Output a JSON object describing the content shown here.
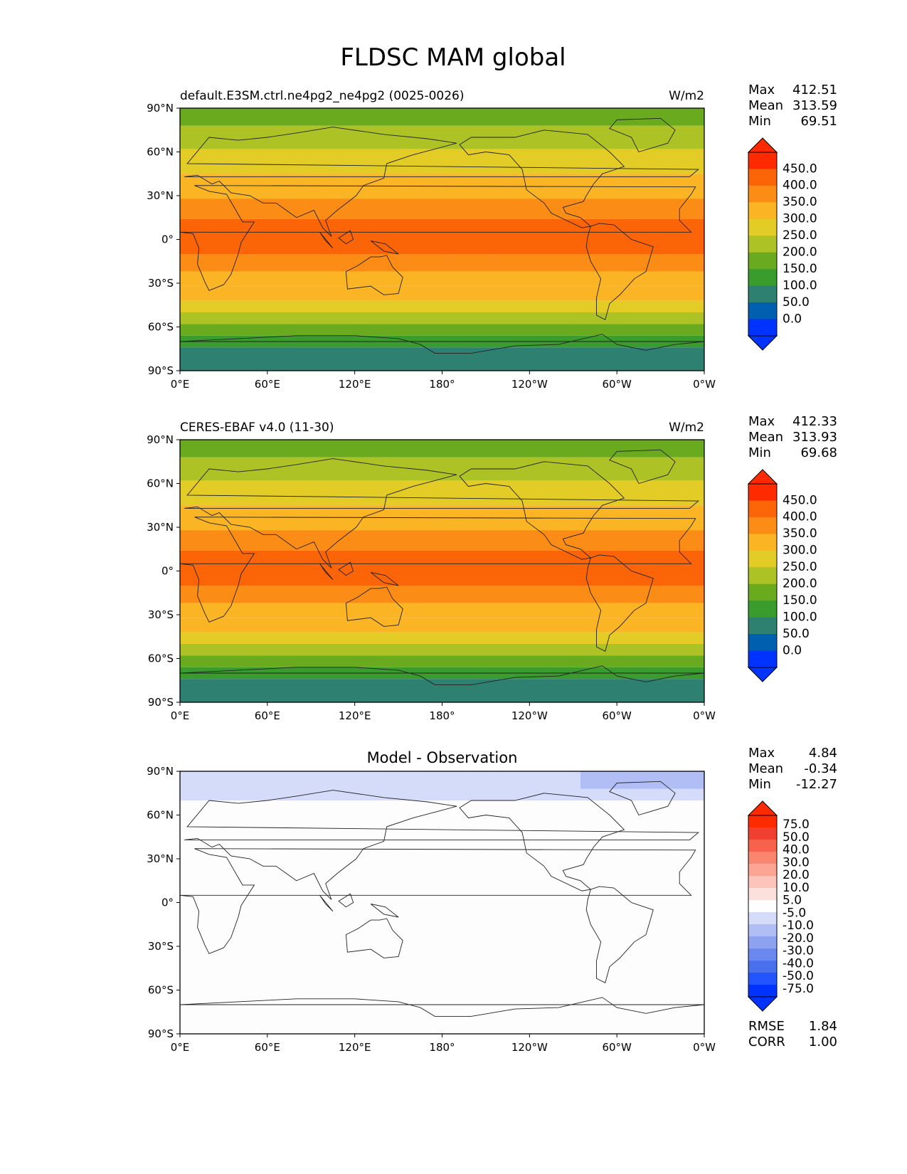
{
  "figure": {
    "title": "FLDSC MAM global"
  },
  "axes": {
    "x_ticks": [
      "0°E",
      "60°E",
      "120°E",
      "180°",
      "120°W",
      "60°W",
      "0°W"
    ],
    "y_ticks": [
      "90°N",
      "60°N",
      "30°N",
      "0°",
      "30°S",
      "60°S",
      "90°S"
    ]
  },
  "panels": [
    {
      "left_title": "default.E3SM.ctrl.ne4pg2_ne4pg2 (0025-0026)",
      "center_title": "",
      "units": "W/m2",
      "stats": [
        {
          "label": "Max",
          "value": "412.51"
        },
        {
          "label": "Mean",
          "value": "313.59"
        },
        {
          "label": "Min",
          "value": "69.51"
        }
      ],
      "colorbar_labels": [
        "450.0",
        "400.0",
        "350.0",
        "300.0",
        "250.0",
        "200.0",
        "150.0",
        "100.0",
        "50.0",
        "0.0"
      ]
    },
    {
      "left_title": "CERES-EBAF v4.0 (11-30)",
      "center_title": "",
      "units": "W/m2",
      "stats": [
        {
          "label": "Max",
          "value": "412.33"
        },
        {
          "label": "Mean",
          "value": "313.93"
        },
        {
          "label": "Min",
          "value": "69.68"
        }
      ],
      "colorbar_labels": [
        "450.0",
        "400.0",
        "350.0",
        "300.0",
        "250.0",
        "200.0",
        "150.0",
        "100.0",
        "50.0",
        "0.0"
      ]
    },
    {
      "left_title": "",
      "center_title": "Model - Observation",
      "units": "",
      "stats": [
        {
          "label": "Max",
          "value": "4.84"
        },
        {
          "label": "Mean",
          "value": "-0.34"
        },
        {
          "label": "Min",
          "value": "-12.27"
        }
      ],
      "colorbar_labels": [
        "75.0",
        "50.0",
        "40.0",
        "30.0",
        "20.0",
        "10.0",
        "5.0",
        "-5.0",
        "-10.0",
        "-20.0",
        "-30.0",
        "-40.0",
        "-50.0",
        "-75.0"
      ],
      "extra_stats": [
        {
          "label": "RMSE",
          "value": "1.84"
        },
        {
          "label": "CORR",
          "value": "1.00"
        }
      ]
    }
  ],
  "colors": {
    "field_scale": [
      "#0033ff",
      "#0060b0",
      "#2e8070",
      "#3a9c2c",
      "#6aaa1e",
      "#adc224",
      "#e4cc26",
      "#fbb424",
      "#fb8c16",
      "#fb6508",
      "#ff2a00"
    ],
    "diff_scale": [
      "#0033ff",
      "#2255ff",
      "#4a70ee",
      "#6a88f0",
      "#8ea2f2",
      "#b1bef5",
      "#d4dcfa",
      "#ffffff",
      "#fbe0dc",
      "#fcc4ba",
      "#fca595",
      "#fa8670",
      "#f6624c",
      "#f24030",
      "#ff2a00"
    ],
    "land_outline": "#222222"
  }
}
